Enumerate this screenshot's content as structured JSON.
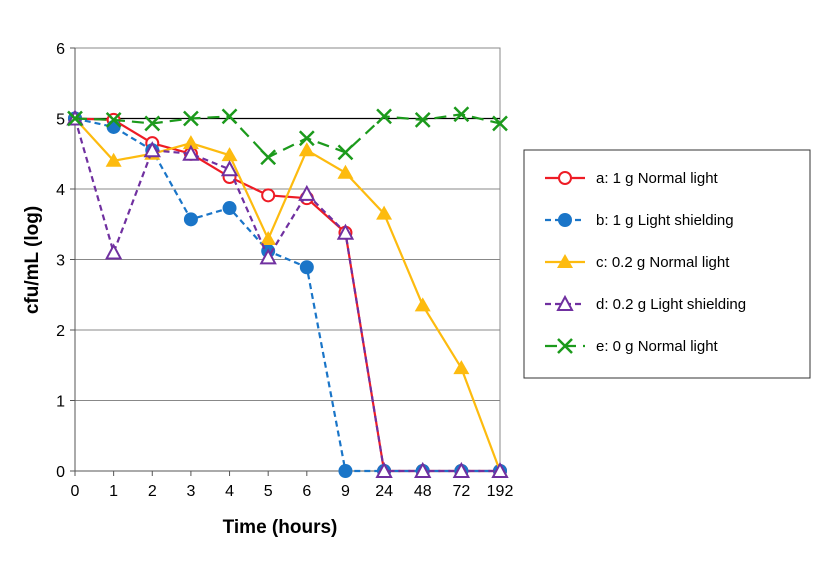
{
  "chart_data": {
    "type": "line",
    "xlabel": "Time (hours)",
    "ylabel": "cfu/mL (log)",
    "categories": [
      "0",
      "1",
      "2",
      "3",
      "4",
      "5",
      "6",
      "9",
      "24",
      "48",
      "72",
      "192"
    ],
    "ylim": [
      0,
      6
    ],
    "yticks": [
      "0",
      "1",
      "2",
      "3",
      "4",
      "5",
      "6"
    ],
    "grid": true,
    "legend_position": "right",
    "series": [
      {
        "name": "a: 1 g Normal light",
        "color": "#ee1c25",
        "marker": "open-circle",
        "dash": "solid",
        "values": [
          5,
          4.98,
          4.65,
          4.5,
          4.17,
          3.91,
          3.87,
          3.38,
          0,
          0,
          0,
          0
        ]
      },
      {
        "name": "b: 1 g Light shielding",
        "color": "#1a75c8",
        "marker": "filled-circle",
        "dash": "dashed",
        "values": [
          5,
          4.88,
          4.55,
          3.57,
          3.73,
          3.12,
          2.89,
          0,
          0,
          0,
          0,
          0
        ]
      },
      {
        "name": "c: 0.2 g Normal light",
        "color": "#fdbb0f",
        "marker": "filled-triangle",
        "dash": "solid",
        "values": [
          5,
          4.4,
          4.5,
          4.65,
          4.48,
          3.29,
          4.55,
          4.23,
          3.65,
          2.35,
          1.46,
          0
        ]
      },
      {
        "name": "d: 0.2 g Light shielding",
        "color": "#7030a0",
        "marker": "open-triangle",
        "dash": "dashed",
        "values": [
          5,
          3.1,
          4.55,
          4.5,
          4.28,
          3.03,
          3.93,
          3.38,
          0,
          0,
          0,
          0
        ]
      },
      {
        "name": "e: 0 g Normal light",
        "color": "#1c9a1c",
        "marker": "x",
        "dash": "longdash",
        "values": [
          5,
          4.98,
          4.93,
          5.0,
          5.03,
          4.45,
          4.72,
          4.52,
          5.03,
          4.98,
          5.06,
          4.93
        ]
      }
    ]
  }
}
